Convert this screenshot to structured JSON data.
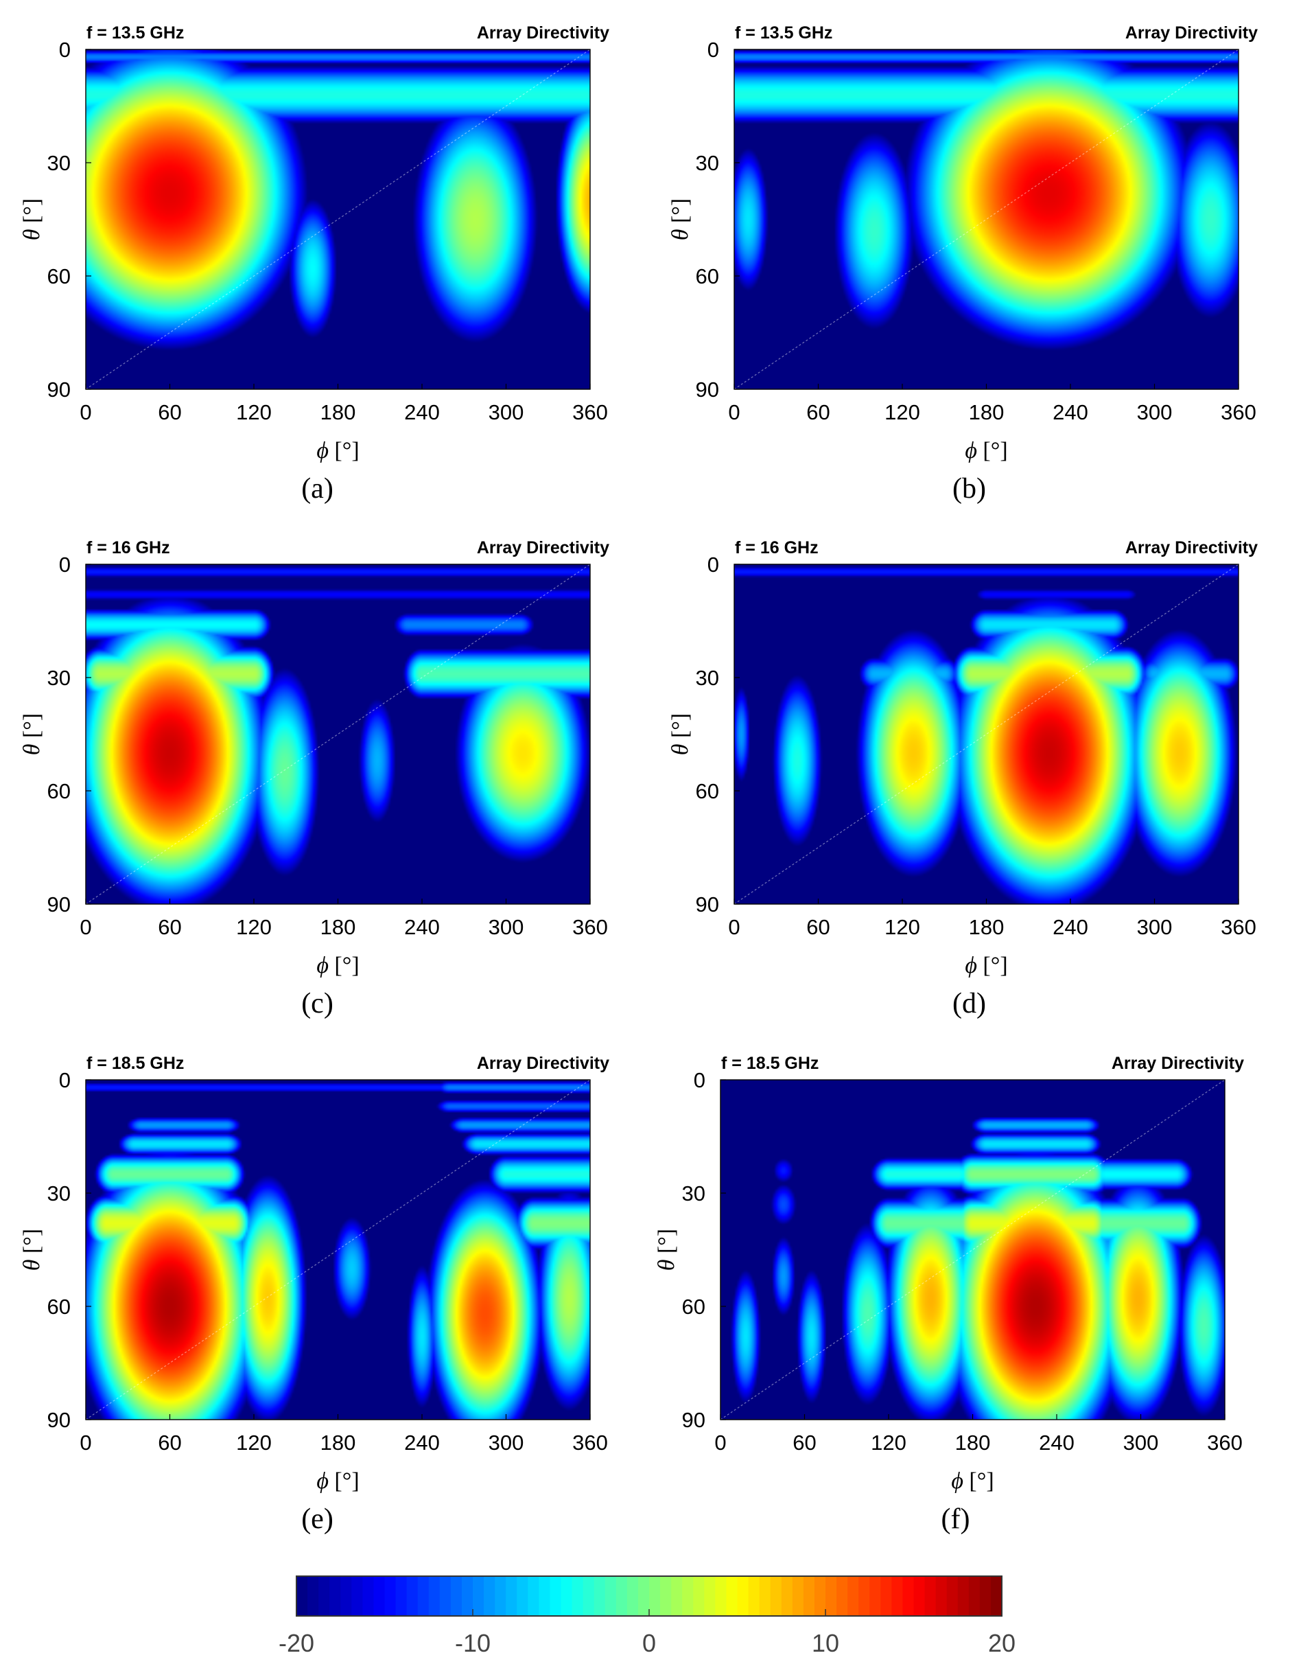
{
  "chart_data": {
    "type": "heatmap",
    "panels": [
      {
        "label": "(a)",
        "frequency": "f = 13.5 GHz",
        "title": "Array Directivity",
        "xlabel_symbol": "ϕ",
        "xlabel_unit": "[°]",
        "ylabel_symbol": "θ",
        "ylabel_unit": "[°]",
        "xlim": [
          0,
          360
        ],
        "ylim": [
          0,
          90
        ],
        "y_direction": "down",
        "xticks": [
          0,
          60,
          120,
          180,
          240,
          300,
          360
        ],
        "yticks": [
          0,
          30,
          60,
          90
        ],
        "background_dB": -20,
        "horizontal_bands": [
          {
            "theta": 2,
            "phi_range": [
              0,
              360
            ],
            "value": -10,
            "sigma_theta": 1.8
          },
          {
            "theta": 12,
            "phi_range": [
              0,
              360
            ],
            "value": -4,
            "sigma_theta": 6
          }
        ],
        "lobes": [
          {
            "phi": 60,
            "theta": 38,
            "value": 16,
            "sigma_phi": 52,
            "sigma_theta": 22
          },
          {
            "phi": 162,
            "theta": 58,
            "value": -5,
            "sigma_phi": 14,
            "sigma_theta": 15
          },
          {
            "phi": 278,
            "theta": 45,
            "value": 2,
            "sigma_phi": 30,
            "sigma_theta": 22
          },
          {
            "phi": 362,
            "theta": 40,
            "value": 8,
            "sigma_phi": 16,
            "sigma_theta": 18
          }
        ]
      },
      {
        "label": "(b)",
        "frequency": "f = 13.5 GHz",
        "title": "Array Directivity",
        "xlabel_symbol": "ϕ",
        "xlabel_unit": "[°]",
        "ylabel_symbol": "θ",
        "ylabel_unit": "[°]",
        "xlim": [
          0,
          360
        ],
        "ylim": [
          0,
          90
        ],
        "y_direction": "down",
        "xticks": [
          0,
          60,
          120,
          180,
          240,
          300,
          360
        ],
        "yticks": [
          0,
          30,
          60,
          90
        ],
        "background_dB": -20,
        "horizontal_bands": [
          {
            "theta": 2,
            "phi_range": [
              0,
              360
            ],
            "value": -10,
            "sigma_theta": 1.8
          },
          {
            "theta": 12,
            "phi_range": [
              0,
              360
            ],
            "value": -4,
            "sigma_theta": 6
          }
        ],
        "lobes": [
          {
            "phi": 225,
            "theta": 38,
            "value": 16,
            "sigma_phi": 55,
            "sigma_theta": 22
          },
          {
            "phi": 100,
            "theta": 48,
            "value": -3,
            "sigma_phi": 22,
            "sigma_theta": 20
          },
          {
            "phi": 10,
            "theta": 45,
            "value": -6,
            "sigma_phi": 12,
            "sigma_theta": 16
          },
          {
            "phi": 340,
            "theta": 45,
            "value": -3,
            "sigma_phi": 22,
            "sigma_theta": 20
          }
        ]
      },
      {
        "label": "(c)",
        "frequency": "f = 16 GHz",
        "title": "Array Directivity",
        "xlabel_symbol": "ϕ",
        "xlabel_unit": "[°]",
        "ylabel_symbol": "θ",
        "ylabel_unit": "[°]",
        "xlim": [
          0,
          360
        ],
        "ylim": [
          0,
          90
        ],
        "y_direction": "down",
        "xticks": [
          0,
          60,
          120,
          180,
          240,
          300,
          360
        ],
        "yticks": [
          0,
          30,
          60,
          90
        ],
        "background_dB": -20,
        "horizontal_bands": [
          {
            "theta": 2,
            "phi_range": [
              0,
              360
            ],
            "value": -14,
            "sigma_theta": 1.8
          },
          {
            "theta": 8,
            "phi_range": [
              0,
              360
            ],
            "value": -15,
            "sigma_theta": 2
          },
          {
            "theta": 16,
            "phi_range": [
              0,
              120
            ],
            "value": -5,
            "sigma_theta": 3.5
          },
          {
            "theta": 16,
            "phi_range": [
              230,
              310
            ],
            "value": -10,
            "sigma_theta": 3
          },
          {
            "theta": 29,
            "phi_range": [
              10,
              120
            ],
            "value": 2,
            "sigma_theta": 5
          },
          {
            "theta": 29,
            "phi_range": [
              240,
              360
            ],
            "value": -2,
            "sigma_theta": 5
          }
        ],
        "lobes": [
          {
            "phi": 60,
            "theta": 50,
            "value": 17,
            "sigma_phi": 38,
            "sigma_theta": 22
          },
          {
            "phi": 142,
            "theta": 55,
            "value": -1,
            "sigma_phi": 18,
            "sigma_theta": 20
          },
          {
            "phi": 208,
            "theta": 52,
            "value": -8,
            "sigma_phi": 12,
            "sigma_theta": 15
          },
          {
            "phi": 312,
            "theta": 50,
            "value": 6,
            "sigma_phi": 30,
            "sigma_theta": 18
          }
        ]
      },
      {
        "label": "(d)",
        "frequency": "f = 16 GHz",
        "title": "Array Directivity",
        "xlabel_symbol": "ϕ",
        "xlabel_unit": "[°]",
        "ylabel_symbol": "θ",
        "ylabel_unit": "[°]",
        "xlim": [
          0,
          360
        ],
        "ylim": [
          0,
          90
        ],
        "y_direction": "down",
        "xticks": [
          0,
          60,
          120,
          180,
          240,
          300,
          360
        ],
        "yticks": [
          0,
          30,
          60,
          90
        ],
        "background_dB": -20,
        "horizontal_bands": [
          {
            "theta": 2,
            "phi_range": [
              0,
              360
            ],
            "value": -14,
            "sigma_theta": 1.8
          },
          {
            "theta": 8,
            "phi_range": [
              180,
              280
            ],
            "value": -15,
            "sigma_theta": 2
          },
          {
            "theta": 16,
            "phi_range": [
              180,
              270
            ],
            "value": -6,
            "sigma_theta": 3.5
          },
          {
            "theta": 29,
            "phi_range": [
              170,
              280
            ],
            "value": 2,
            "sigma_theta": 5
          },
          {
            "theta": 29,
            "phi_range": [
              100,
              150
            ],
            "value": -8,
            "sigma_theta": 4
          },
          {
            "theta": 29,
            "phi_range": [
              300,
              350
            ],
            "value": -8,
            "sigma_theta": 4
          }
        ],
        "lobes": [
          {
            "phi": 225,
            "theta": 50,
            "value": 17,
            "sigma_phi": 38,
            "sigma_theta": 22
          },
          {
            "phi": 128,
            "theta": 50,
            "value": 7,
            "sigma_phi": 25,
            "sigma_theta": 20
          },
          {
            "phi": 318,
            "theta": 50,
            "value": 7,
            "sigma_phi": 25,
            "sigma_theta": 20
          },
          {
            "phi": 45,
            "theta": 52,
            "value": -4,
            "sigma_phi": 14,
            "sigma_theta": 18
          },
          {
            "phi": 5,
            "theta": 45,
            "value": -9,
            "sigma_phi": 6,
            "sigma_theta": 12
          }
        ]
      },
      {
        "label": "(e)",
        "frequency": "f = 18.5 GHz",
        "title": "Array Directivity",
        "xlabel_symbol": "ϕ",
        "xlabel_unit": "[°]",
        "ylabel_symbol": "θ",
        "ylabel_unit": "[°]",
        "xlim": [
          0,
          360
        ],
        "ylim": [
          0,
          90
        ],
        "y_direction": "down",
        "xticks": [
          0,
          60,
          120,
          180,
          240,
          300,
          360
        ],
        "yticks": [
          0,
          30,
          60,
          90
        ],
        "background_dB": -20,
        "horizontal_bands": [
          {
            "theta": 2,
            "phi_range": [
              0,
              360
            ],
            "value": -14,
            "sigma_theta": 1.6
          },
          {
            "theta": 2,
            "phi_range": [
              260,
              360
            ],
            "value": -10,
            "sigma_theta": 1.6
          },
          {
            "theta": 7,
            "phi_range": [
              260,
              360
            ],
            "value": -11,
            "sigma_theta": 1.8
          },
          {
            "theta": 12,
            "phi_range": [
              40,
              100
            ],
            "value": -9,
            "sigma_theta": 2
          },
          {
            "theta": 12,
            "phi_range": [
              270,
              360
            ],
            "value": -9,
            "sigma_theta": 2
          },
          {
            "theta": 17,
            "phi_range": [
              35,
              100
            ],
            "value": -6,
            "sigma_theta": 2.5
          },
          {
            "theta": 17,
            "phi_range": [
              280,
              360
            ],
            "value": -6,
            "sigma_theta": 2.5
          },
          {
            "theta": 25,
            "phi_range": [
              20,
              100
            ],
            "value": -1,
            "sigma_theta": 4
          },
          {
            "theta": 25,
            "phi_range": [
              300,
              360
            ],
            "value": -4,
            "sigma_theta": 4
          },
          {
            "theta": 38,
            "phi_range": [
              15,
              105
            ],
            "value": 4,
            "sigma_theta": 5
          },
          {
            "theta": 38,
            "phi_range": [
              320,
              360
            ],
            "value": 0,
            "sigma_theta": 5
          }
        ],
        "lobes": [
          {
            "phi": 60,
            "theta": 60,
            "value": 18,
            "sigma_phi": 35,
            "sigma_theta": 22
          },
          {
            "phi": 130,
            "theta": 58,
            "value": 7,
            "sigma_phi": 17,
            "sigma_theta": 20
          },
          {
            "phi": 285,
            "theta": 62,
            "value": 12,
            "sigma_phi": 24,
            "sigma_theta": 20
          },
          {
            "phi": 345,
            "theta": 58,
            "value": 2,
            "sigma_phi": 16,
            "sigma_theta": 20
          },
          {
            "phi": 190,
            "theta": 50,
            "value": -7,
            "sigma_phi": 12,
            "sigma_theta": 12
          },
          {
            "phi": 240,
            "theta": 68,
            "value": -6,
            "sigma_phi": 9,
            "sigma_theta": 16
          },
          {
            "phi": 125,
            "theta": 40,
            "value": -6,
            "sigma_phi": 12,
            "sigma_theta": 7
          }
        ]
      },
      {
        "label": "(f)",
        "frequency": "f = 18.5 GHz",
        "title": "Array Directivity",
        "xlabel_symbol": "ϕ",
        "xlabel_unit": "[°]",
        "ylabel_symbol": "θ",
        "ylabel_unit": "[°]",
        "xlim": [
          0,
          360
        ],
        "ylim": [
          0,
          90
        ],
        "y_direction": "down",
        "xticks": [
          0,
          60,
          120,
          180,
          240,
          300,
          360
        ],
        "yticks": [
          0,
          30,
          60,
          90
        ],
        "background_dB": -20,
        "horizontal_bands": [
          {
            "theta": 12,
            "phi_range": [
              190,
              260
            ],
            "value": -8,
            "sigma_theta": 2
          },
          {
            "theta": 17,
            "phi_range": [
              190,
              260
            ],
            "value": -6,
            "sigma_theta": 2.5
          },
          {
            "theta": 25,
            "phi_range": [
              120,
              170
            ],
            "value": -4,
            "sigma_theta": 3.5
          },
          {
            "theta": 25,
            "phi_range": [
              180,
              265
            ],
            "value": 0,
            "sigma_theta": 4
          },
          {
            "theta": 25,
            "phi_range": [
              275,
              325
            ],
            "value": -5,
            "sigma_theta": 3.5
          },
          {
            "theta": 38,
            "phi_range": [
              120,
              175
            ],
            "value": -1,
            "sigma_theta": 5
          },
          {
            "theta": 38,
            "phi_range": [
              180,
              265
            ],
            "value": 4,
            "sigma_theta": 5
          },
          {
            "theta": 38,
            "phi_range": [
              270,
              330
            ],
            "value": -1,
            "sigma_theta": 5
          }
        ],
        "lobes": [
          {
            "phi": 225,
            "theta": 60,
            "value": 18,
            "sigma_phi": 35,
            "sigma_theta": 22
          },
          {
            "phi": 150,
            "theta": 58,
            "value": 8,
            "sigma_phi": 20,
            "sigma_theta": 20
          },
          {
            "phi": 298,
            "theta": 58,
            "value": 8,
            "sigma_phi": 20,
            "sigma_theta": 20
          },
          {
            "phi": 105,
            "theta": 62,
            "value": -2,
            "sigma_phi": 14,
            "sigma_theta": 18
          },
          {
            "phi": 345,
            "theta": 65,
            "value": -2,
            "sigma_phi": 14,
            "sigma_theta": 18
          },
          {
            "phi": 65,
            "theta": 68,
            "value": -6,
            "sigma_phi": 9,
            "sigma_theta": 15
          },
          {
            "phi": 18,
            "theta": 68,
            "value": -6,
            "sigma_phi": 9,
            "sigma_theta": 15
          },
          {
            "phi": 45,
            "theta": 52,
            "value": -9,
            "sigma_phi": 8,
            "sigma_theta": 10
          },
          {
            "phi": 45,
            "theta": 33,
            "value": -12,
            "sigma_phi": 10,
            "sigma_theta": 6
          },
          {
            "phi": 45,
            "theta": 24,
            "value": -14,
            "sigma_phi": 9,
            "sigma_theta": 4
          }
        ]
      }
    ],
    "colorbar": {
      "min": -20,
      "max": 20,
      "ticks": [
        -20,
        -10,
        0,
        10,
        20
      ],
      "colormap": "jet",
      "orientation": "horizontal",
      "placement": "bottom"
    }
  }
}
